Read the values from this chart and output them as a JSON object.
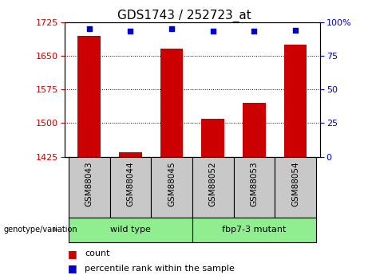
{
  "title": "GDS1743 / 252723_at",
  "samples": [
    "GSM88043",
    "GSM88044",
    "GSM88045",
    "GSM88052",
    "GSM88053",
    "GSM88054"
  ],
  "bar_values": [
    1695,
    1435,
    1665,
    1510,
    1545,
    1675
  ],
  "percentile_values": [
    95,
    93,
    95,
    93,
    93,
    94
  ],
  "ylim_left": [
    1425,
    1725
  ],
  "ylim_right": [
    0,
    100
  ],
  "yticks_left": [
    1425,
    1500,
    1575,
    1650,
    1725
  ],
  "yticks_right": [
    0,
    25,
    50,
    75,
    100
  ],
  "bar_color": "#cc0000",
  "dot_color": "#0000cc",
  "bar_width": 0.55,
  "group_labels": [
    "wild type",
    "fbp7-3 mutant"
  ],
  "group_ranges": [
    [
      0,
      2
    ],
    [
      3,
      5
    ]
  ],
  "group_colors": [
    "#90ee90",
    "#90ee90"
  ],
  "genotype_label": "genotype/variation",
  "legend_count_label": "count",
  "legend_pct_label": "percentile rank within the sample",
  "tick_label_color_left": "#cc0000",
  "tick_label_color_right": "#0000cc",
  "background_plot": "#ffffff",
  "background_xtick": "#c8c8c8",
  "title_fontsize": 11
}
